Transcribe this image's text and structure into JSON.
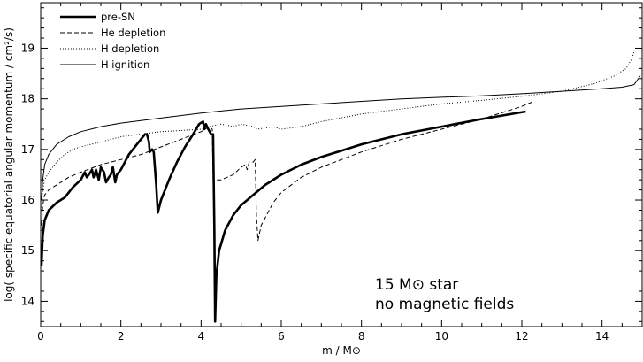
{
  "chart_data": {
    "type": "line",
    "title": "",
    "xlabel": "m / M⊙",
    "ylabel": "log( specific equatorial angular momentum / cm²/s)",
    "xlim": [
      0,
      15
    ],
    "ylim": [
      13.5,
      19.9
    ],
    "x_ticks": [
      0,
      2,
      4,
      6,
      8,
      10,
      12,
      14
    ],
    "y_ticks": [
      14,
      15,
      16,
      17,
      18,
      19
    ],
    "grid": false,
    "legend_position": "top-left",
    "annotation": [
      "15 M⊙ star",
      "no magnetic fields"
    ],
    "series": [
      {
        "name": "pre-SN",
        "style": "solid-thick",
        "points": [
          [
            0.02,
            14.7
          ],
          [
            0.05,
            15.3
          ],
          [
            0.1,
            15.6
          ],
          [
            0.2,
            15.8
          ],
          [
            0.4,
            15.95
          ],
          [
            0.6,
            16.05
          ],
          [
            0.8,
            16.25
          ],
          [
            1.0,
            16.4
          ],
          [
            1.1,
            16.55
          ],
          [
            1.15,
            16.45
          ],
          [
            1.2,
            16.5
          ],
          [
            1.28,
            16.6
          ],
          [
            1.32,
            16.45
          ],
          [
            1.38,
            16.6
          ],
          [
            1.45,
            16.4
          ],
          [
            1.5,
            16.65
          ],
          [
            1.58,
            16.55
          ],
          [
            1.63,
            16.35
          ],
          [
            1.7,
            16.45
          ],
          [
            1.75,
            16.5
          ],
          [
            1.8,
            16.65
          ],
          [
            1.86,
            16.35
          ],
          [
            1.9,
            16.5
          ],
          [
            2.0,
            16.6
          ],
          [
            2.2,
            16.9
          ],
          [
            2.4,
            17.1
          ],
          [
            2.6,
            17.3
          ],
          [
            2.65,
            17.3
          ],
          [
            2.7,
            17.15
          ],
          [
            2.72,
            16.95
          ],
          [
            2.78,
            17.0
          ],
          [
            2.82,
            16.95
          ],
          [
            2.88,
            16.3
          ],
          [
            2.92,
            15.75
          ],
          [
            3.0,
            16.0
          ],
          [
            3.2,
            16.4
          ],
          [
            3.4,
            16.75
          ],
          [
            3.6,
            17.05
          ],
          [
            3.8,
            17.3
          ],
          [
            3.95,
            17.5
          ],
          [
            4.05,
            17.55
          ],
          [
            4.08,
            17.4
          ],
          [
            4.12,
            17.5
          ],
          [
            4.18,
            17.4
          ],
          [
            4.25,
            17.3
          ],
          [
            4.3,
            17.3
          ],
          [
            4.33,
            15.5
          ],
          [
            4.35,
            13.6
          ],
          [
            4.38,
            14.5
          ],
          [
            4.45,
            15.0
          ],
          [
            4.6,
            15.4
          ],
          [
            4.8,
            15.7
          ],
          [
            5.0,
            15.9
          ],
          [
            5.3,
            16.1
          ],
          [
            5.6,
            16.3
          ],
          [
            6.0,
            16.5
          ],
          [
            6.5,
            16.7
          ],
          [
            7.0,
            16.85
          ],
          [
            8.0,
            17.1
          ],
          [
            9.0,
            17.3
          ],
          [
            10.0,
            17.45
          ],
          [
            11.0,
            17.6
          ],
          [
            12.1,
            17.75
          ]
        ]
      },
      {
        "name": "He depletion",
        "style": "dashed",
        "points": [
          [
            0.02,
            15.5
          ],
          [
            0.05,
            15.9
          ],
          [
            0.1,
            16.1
          ],
          [
            0.2,
            16.2
          ],
          [
            0.4,
            16.3
          ],
          [
            0.7,
            16.45
          ],
          [
            1.0,
            16.55
          ],
          [
            1.5,
            16.7
          ],
          [
            2.0,
            16.8
          ],
          [
            2.5,
            16.9
          ],
          [
            3.0,
            17.05
          ],
          [
            3.5,
            17.2
          ],
          [
            4.0,
            17.35
          ],
          [
            4.2,
            17.45
          ],
          [
            4.28,
            17.4
          ],
          [
            4.3,
            16.4
          ],
          [
            4.5,
            16.4
          ],
          [
            4.8,
            16.5
          ],
          [
            5.0,
            16.65
          ],
          [
            5.1,
            16.7
          ],
          [
            5.15,
            16.6
          ],
          [
            5.2,
            16.75
          ],
          [
            5.3,
            16.75
          ],
          [
            5.35,
            16.8
          ],
          [
            5.38,
            15.7
          ],
          [
            5.42,
            15.2
          ],
          [
            5.5,
            15.5
          ],
          [
            5.8,
            15.95
          ],
          [
            6.0,
            16.15
          ],
          [
            6.5,
            16.45
          ],
          [
            7.0,
            16.65
          ],
          [
            8.0,
            16.95
          ],
          [
            9.0,
            17.2
          ],
          [
            10.0,
            17.4
          ],
          [
            11.0,
            17.6
          ],
          [
            12.0,
            17.85
          ],
          [
            12.3,
            17.95
          ]
        ]
      },
      {
        "name": "H depletion",
        "style": "dotted",
        "points": [
          [
            0.02,
            15.8
          ],
          [
            0.05,
            16.2
          ],
          [
            0.1,
            16.4
          ],
          [
            0.2,
            16.55
          ],
          [
            0.4,
            16.75
          ],
          [
            0.6,
            16.9
          ],
          [
            0.8,
            17.0
          ],
          [
            1.0,
            17.05
          ],
          [
            1.5,
            17.15
          ],
          [
            2.0,
            17.25
          ],
          [
            3.0,
            17.35
          ],
          [
            4.0,
            17.4
          ],
          [
            4.2,
            17.45
          ],
          [
            4.5,
            17.5
          ],
          [
            4.8,
            17.45
          ],
          [
            5.0,
            17.5
          ],
          [
            5.3,
            17.45
          ],
          [
            5.4,
            17.4
          ],
          [
            5.8,
            17.45
          ],
          [
            6.0,
            17.4
          ],
          [
            6.5,
            17.45
          ],
          [
            7.0,
            17.55
          ],
          [
            8.0,
            17.7
          ],
          [
            9.0,
            17.8
          ],
          [
            10.0,
            17.9
          ],
          [
            11.0,
            17.97
          ],
          [
            12.0,
            18.05
          ],
          [
            13.0,
            18.15
          ],
          [
            13.8,
            18.3
          ],
          [
            14.3,
            18.45
          ],
          [
            14.6,
            18.6
          ],
          [
            14.75,
            18.8
          ],
          [
            14.82,
            19.0
          ]
        ]
      },
      {
        "name": "H ignition",
        "style": "solid-thin",
        "points": [
          [
            0.02,
            16.0
          ],
          [
            0.05,
            16.4
          ],
          [
            0.1,
            16.7
          ],
          [
            0.2,
            16.9
          ],
          [
            0.4,
            17.1
          ],
          [
            0.7,
            17.25
          ],
          [
            1.0,
            17.35
          ],
          [
            1.5,
            17.45
          ],
          [
            2.0,
            17.52
          ],
          [
            3.0,
            17.62
          ],
          [
            4.0,
            17.72
          ],
          [
            5.0,
            17.8
          ],
          [
            6.0,
            17.85
          ],
          [
            7.0,
            17.9
          ],
          [
            8.0,
            17.95
          ],
          [
            9.0,
            18.0
          ],
          [
            10.0,
            18.03
          ],
          [
            11.0,
            18.06
          ],
          [
            12.0,
            18.1
          ],
          [
            13.0,
            18.15
          ],
          [
            14.0,
            18.2
          ],
          [
            14.5,
            18.23
          ],
          [
            14.8,
            18.28
          ],
          [
            14.95,
            18.45
          ]
        ]
      }
    ]
  }
}
